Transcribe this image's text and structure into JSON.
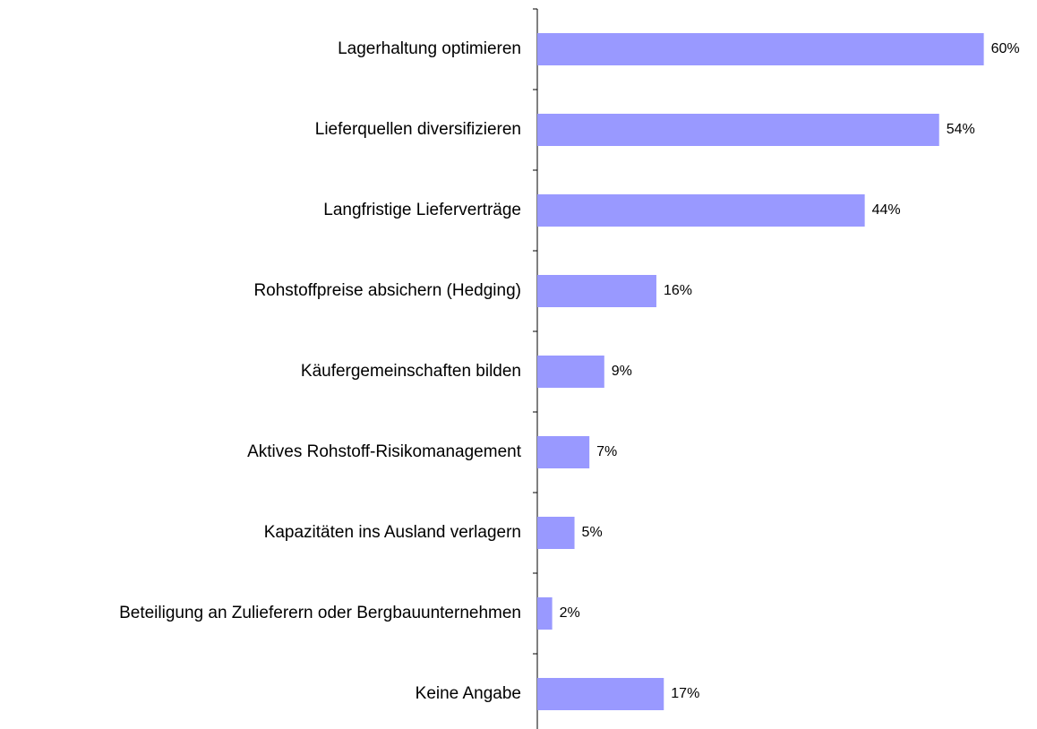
{
  "chart_data": {
    "type": "bar",
    "orientation": "horizontal",
    "categories": [
      "Lagerhaltung optimieren",
      "Lieferquellen diversifizieren",
      "Langfristige Lieferverträge",
      "Rohstoffpreise absichern (Hedging)",
      "Käufergemeinschaften bilden",
      "Aktives Rohstoff-Risikomanagement",
      "Kapazitäten ins Ausland verlagern",
      "Beteiligung an Zulieferern oder Bergbauunternehmen",
      "Keine Angabe"
    ],
    "values": [
      60,
      54,
      44,
      16,
      9,
      7,
      5,
      2,
      17
    ],
    "value_labels": [
      "60%",
      "54%",
      "44%",
      "16%",
      "9%",
      "7%",
      "5%",
      "2%",
      "17%"
    ],
    "color": "#9999ff"
  }
}
